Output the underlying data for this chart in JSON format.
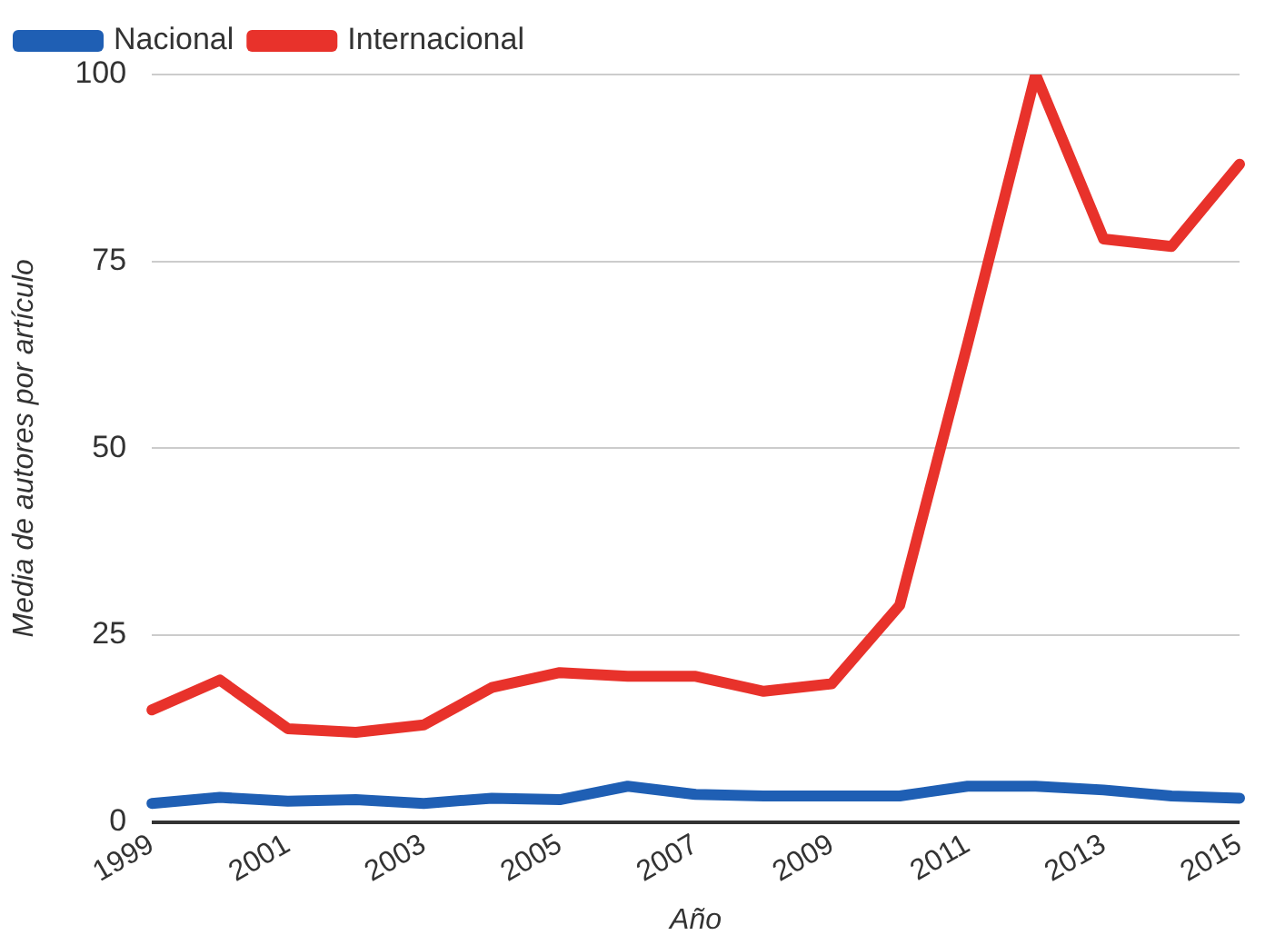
{
  "chart_data": {
    "type": "line",
    "xlabel": "Año",
    "ylabel": "Media de autores por artículo",
    "categories": [
      "1999",
      null,
      "2001",
      null,
      "2003",
      null,
      "2005",
      null,
      "2007",
      null,
      "2009",
      null,
      "2011",
      null,
      "2013",
      null,
      "2015"
    ],
    "series": [
      {
        "name": "Nacional",
        "color": "#1f5fb4",
        "values": [
          2.5,
          3.3,
          2.8,
          3,
          2.5,
          3.2,
          3,
          4.8,
          3.7,
          3.5,
          3.5,
          3.5,
          4.8,
          4.8,
          4.3,
          3.5,
          3.2
        ]
      },
      {
        "name": "Internacional",
        "color": "#e8322b",
        "values": [
          15,
          19,
          12.5,
          12,
          13,
          18,
          20,
          19.5,
          19.5,
          17.5,
          18.5,
          29,
          64,
          100,
          78,
          77,
          88
        ]
      }
    ],
    "ylim": [
      0,
      100
    ],
    "yticks": [
      0,
      25,
      50,
      75,
      100
    ],
    "grid": "y",
    "legend": "top left",
    "marker": "none"
  }
}
